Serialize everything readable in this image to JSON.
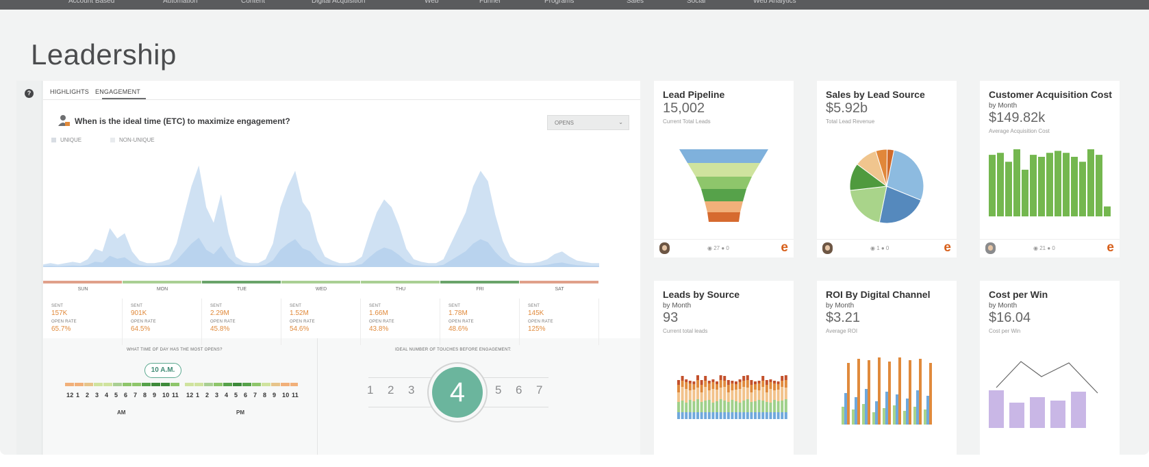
{
  "page": {
    "title": "Leadership"
  },
  "nav": {
    "items": [
      "Account Based",
      "Automation",
      "Content",
      "Digital Acquisition",
      "Web",
      "Funnel",
      "Programs",
      "Sales",
      "Social",
      "Web Analytics"
    ]
  },
  "engagement": {
    "tabs": [
      "HIGHLIGHTS",
      "ENGAGEMENT"
    ],
    "question": "When is the ideal time (ETC) to maximize engagement?",
    "metric_select": "OPENS",
    "legend": [
      "UNIQUE",
      "NON-UNIQUE"
    ],
    "days": [
      "SUN",
      "MON",
      "TUE",
      "WED",
      "THU",
      "FRI",
      "SAT"
    ],
    "day_colors": [
      "#e0a08a",
      "#a9cf93",
      "#6aa46a",
      "#a9cf93",
      "#a9cf93",
      "#6aa46a",
      "#e0a08a"
    ],
    "stat_labels": {
      "sent": "SENT",
      "open_rate": "OPEN RATE"
    },
    "stats": [
      {
        "sent": "157K",
        "open_rate": "65.7%"
      },
      {
        "sent": "901K",
        "open_rate": "64.5%"
      },
      {
        "sent": "2.29M",
        "open_rate": "45.8%"
      },
      {
        "sent": "1.52M",
        "open_rate": "54.6%"
      },
      {
        "sent": "1.66M",
        "open_rate": "43.8%"
      },
      {
        "sent": "1.78M",
        "open_rate": "48.6%"
      },
      {
        "sent": "145K",
        "open_rate": "125%"
      }
    ],
    "time_question": "WHAT TIME OF DAY HAS THE MOST OPENS?",
    "best_time": "10 A.M.",
    "hours": [
      "12",
      "1",
      "2",
      "3",
      "4",
      "5",
      "6",
      "7",
      "8",
      "9",
      "10",
      "11"
    ],
    "am_label": "AM",
    "pm_label": "PM",
    "touch_question": "IDEAL NUMBER OF TOUCHES BEFORE ENGAGEMENT:",
    "touch_numbers": [
      "1",
      "2",
      "3",
      "5",
      "6",
      "7"
    ],
    "ideal_touches": "4"
  },
  "cards": [
    {
      "title": "Lead Pipeline",
      "sub": "",
      "value": "15,002",
      "caption": "Current Total Leads",
      "meta": "◉ 27  ● 0",
      "chart": "funnel"
    },
    {
      "title": "Sales by Lead Source",
      "sub": "",
      "value": "$5.92b",
      "caption": "Total Lead Revenue",
      "meta": "◉ 1  ● 0",
      "chart": "pie"
    },
    {
      "title": "Customer Acquisition Cost",
      "sub": "by Month",
      "value": "$149.82k",
      "caption": "Average Acquisition Cost",
      "meta": "◉ 21  ● 0",
      "chart": "bars"
    },
    {
      "title": "Leads by Source",
      "sub": "by Month",
      "value": "93",
      "caption": "Current total leads",
      "meta": "",
      "chart": "stacked"
    },
    {
      "title": "ROI By Digital Channel",
      "sub": "by Month",
      "value": "$3.21",
      "caption": "Average ROI",
      "meta": "",
      "chart": "grouped"
    },
    {
      "title": "Cost per Win",
      "sub": "by Month",
      "value": "$16.04",
      "caption": "Cost per Win",
      "meta": "",
      "chart": "combo"
    }
  ],
  "chart_data": [
    {
      "type": "area",
      "series": [
        {
          "values": [
            2,
            3,
            2,
            3,
            4,
            3,
            6,
            14,
            12,
            30,
            22,
            26,
            12,
            5,
            3,
            3,
            4,
            6,
            18,
            40,
            62,
            78,
            46,
            34,
            56,
            26,
            8,
            4,
            3,
            3,
            6,
            18,
            46,
            62,
            74,
            50,
            42,
            20,
            8,
            5,
            3,
            3,
            4,
            8,
            26,
            42,
            52,
            46,
            32,
            14,
            6,
            4,
            3,
            3,
            6,
            18,
            30,
            42,
            62,
            74,
            66,
            40,
            20,
            8,
            4,
            3,
            3,
            4,
            6,
            10,
            12,
            8,
            5,
            4,
            3,
            3
          ]
        }
      ]
    },
    {
      "type": "bar",
      "title": "Customer Acquisition Cost",
      "values": [
        62,
        64,
        55,
        74,
        47,
        62,
        60,
        64,
        66,
        64,
        60,
        55,
        72,
        62,
        10
      ]
    },
    {
      "type": "pie",
      "title": "Sales by Lead Source",
      "values": [
        28,
        22,
        20,
        12,
        10,
        5,
        3
      ]
    }
  ]
}
